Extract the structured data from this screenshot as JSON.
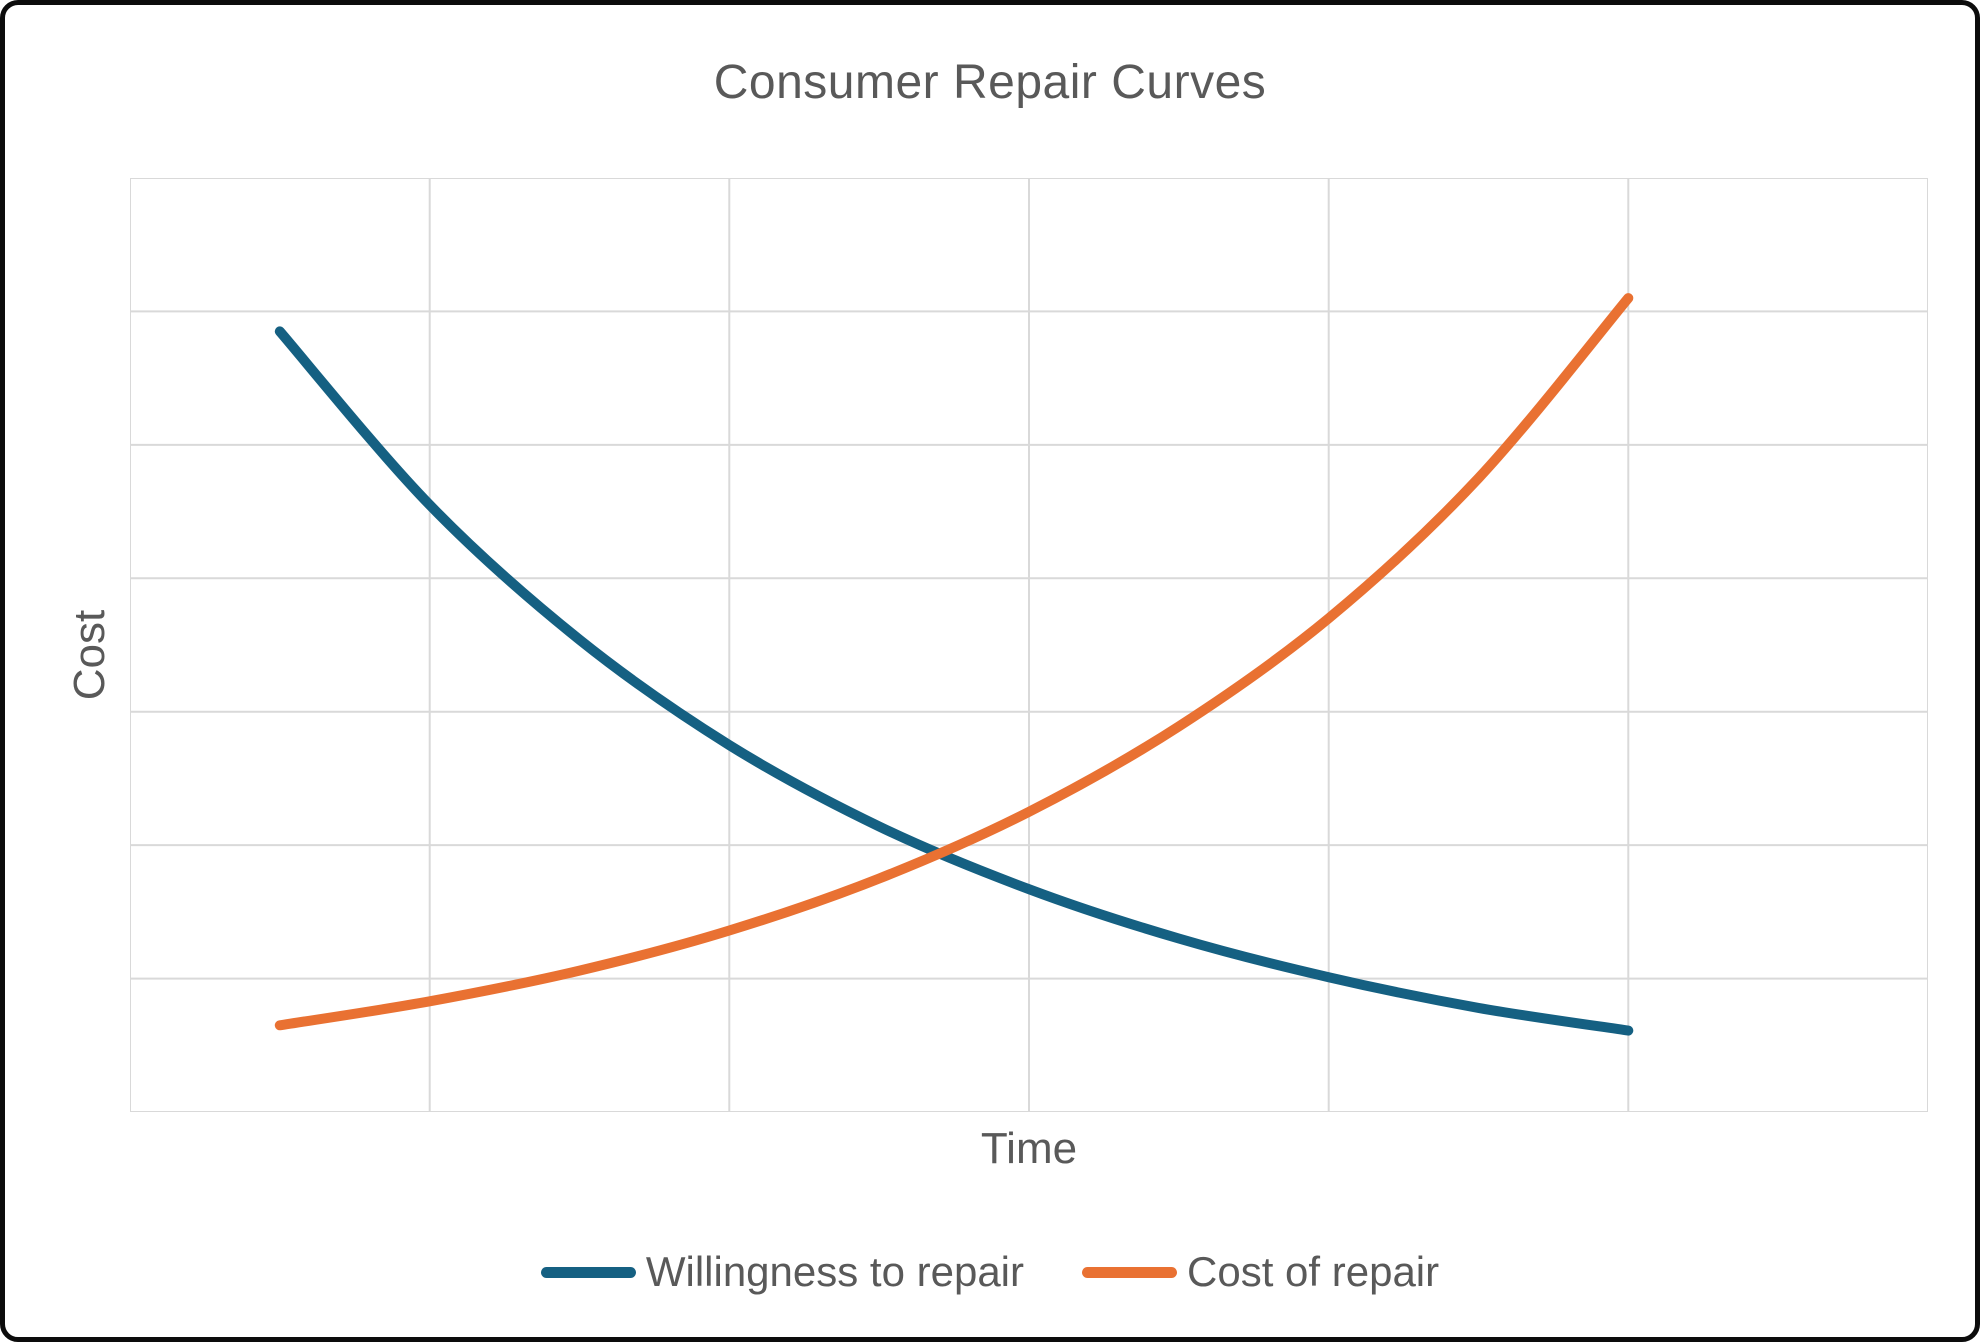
{
  "chart_data": {
    "type": "line",
    "title": "Consumer Repair Curves",
    "xlabel": "Time",
    "ylabel": "Cost",
    "x": [
      0.5,
      1.0,
      1.5,
      2.0,
      2.5,
      3.0,
      3.5,
      4.0,
      4.5,
      5.0
    ],
    "series": [
      {
        "name": "Willingness to repair",
        "color": "#156082",
        "values": [
          5.85,
          4.55,
          3.54,
          2.75,
          2.14,
          1.67,
          1.3,
          1.01,
          0.78,
          0.61
        ]
      },
      {
        "name": "Cost of repair",
        "color": "#E97132",
        "values": [
          0.65,
          0.83,
          1.06,
          1.36,
          1.75,
          2.25,
          2.89,
          3.7,
          4.75,
          6.1
        ]
      }
    ],
    "xlim": [
      0,
      6
    ],
    "ylim": [
      0,
      7
    ],
    "x_divisions": 6,
    "y_divisions": 7,
    "grid": true,
    "tick_labels_visible": false,
    "legend_position": "bottom",
    "gridline_color": "#D9D9D9",
    "text_color": "#595959",
    "background": "#FFFFFF",
    "line_width": 10
  }
}
